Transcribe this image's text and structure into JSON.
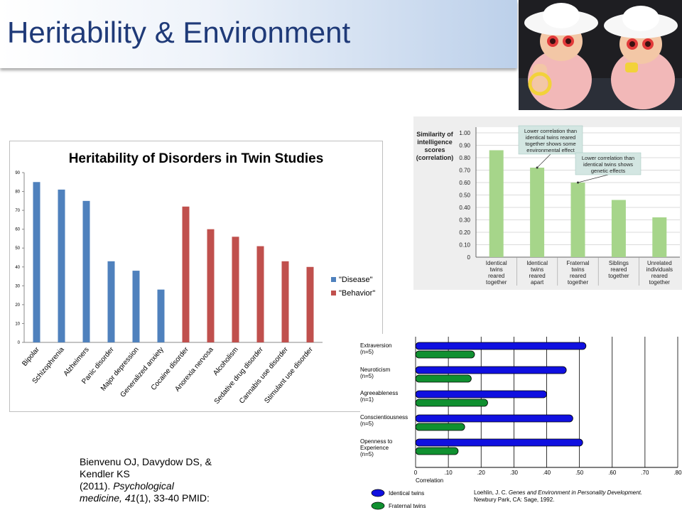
{
  "slide": {
    "title": "Heritability & Environment",
    "citation_line1": "Bienvenu OJ, Davydow DS, &",
    "citation_line2": "Kendler KS",
    "citation_line3_a": "(2011).",
    "citation_line3_b": "Psychological",
    "citation_line4_a": "medicine,",
    "citation_line4_b": "41",
    "citation_line4_c": "(1), 33-40 PMID:"
  },
  "photo": {
    "description_icon": "twin-babies-photo"
  },
  "chart_data": [
    {
      "type": "bar",
      "title": "Heritability of Disorders in Twin Studies",
      "categories": [
        "Bipolar",
        "Schizophrenia",
        "Alzheimers",
        "Panic disorder",
        "Major depression",
        "Generalized anxiety",
        "Cocaine disorder",
        "Anorexia nervosa",
        "Alcoholism",
        "Sedative drug disorder",
        "Cannabis use disorder",
        "Stimulant use disorder"
      ],
      "series": [
        {
          "name": "\"Disease\"",
          "color": "#4f81bd",
          "values": [
            85,
            81,
            75,
            43,
            38,
            28,
            null,
            null,
            null,
            null,
            null,
            null
          ]
        },
        {
          "name": "\"Behavior\"",
          "color": "#c0504d",
          "values": [
            null,
            null,
            null,
            null,
            null,
            null,
            72,
            60,
            56,
            51,
            43,
            40
          ]
        }
      ],
      "ylim": [
        0,
        90
      ],
      "yticks": [
        "0",
        "10",
        "20",
        "30",
        "40",
        "50",
        "60",
        "70",
        "80",
        "90"
      ],
      "grid": false,
      "legend": "right"
    },
    {
      "type": "bar",
      "ylabel_lines": [
        "Similarity of",
        "intelligence",
        "scores",
        "(correlation)"
      ],
      "categories": [
        [
          "Identical",
          "twins",
          "reared",
          "together"
        ],
        [
          "Identical",
          "twins",
          "reared",
          "apart"
        ],
        [
          "Fraternal",
          "twins",
          "reared",
          "together"
        ],
        [
          "Siblings",
          "reared",
          "together"
        ],
        [
          "Unrelated",
          "individuals",
          "reared",
          "together"
        ]
      ],
      "values": [
        0.86,
        0.72,
        0.6,
        0.46,
        0.32
      ],
      "ylim": [
        0,
        1.0
      ],
      "yticks": [
        "0",
        "0.10",
        "0.20",
        "0.30",
        "0.40",
        "0.50",
        "0.60",
        "0.70",
        "0.80",
        "0.90",
        "1.00"
      ],
      "color": "#a6d58a",
      "annotations": [
        {
          "lines": [
            "Lower correlation than",
            "identical twins reared",
            "together shows some",
            "environmental effect"
          ],
          "target": 1
        },
        {
          "lines": [
            "Lower correlation than",
            "identical twins shows",
            "genetic effects"
          ],
          "target": 2
        }
      ]
    },
    {
      "type": "bar",
      "orientation": "horizontal",
      "categories": [
        [
          "Extraversion",
          "(n=5)"
        ],
        [
          "Neuroticism",
          "(n=5)"
        ],
        [
          "Agreeableness",
          "(n=1)"
        ],
        [
          "Conscientiousness",
          "(n=5)"
        ],
        [
          "Openness to",
          "Experience",
          "(n=5)"
        ]
      ],
      "series": [
        {
          "name": "Identical twins",
          "color": "#1010e0",
          "values": [
            0.52,
            0.46,
            0.4,
            0.48,
            0.51
          ]
        },
        {
          "name": "Fraternal twins",
          "color": "#109030",
          "values": [
            0.18,
            0.17,
            0.22,
            0.15,
            0.13
          ]
        }
      ],
      "xlim": [
        0,
        0.8
      ],
      "xticks": [
        "0",
        ".10",
        ".20",
        ".30",
        ".40",
        ".50",
        ".60",
        ".70",
        ".80"
      ],
      "xlabel": "Correlation",
      "source_a": "Loehlin, J. C.",
      "source_b": "Genes and Environment in Personality Development.",
      "source_c": "Newbury Park, CA: Sage, 1992."
    }
  ]
}
